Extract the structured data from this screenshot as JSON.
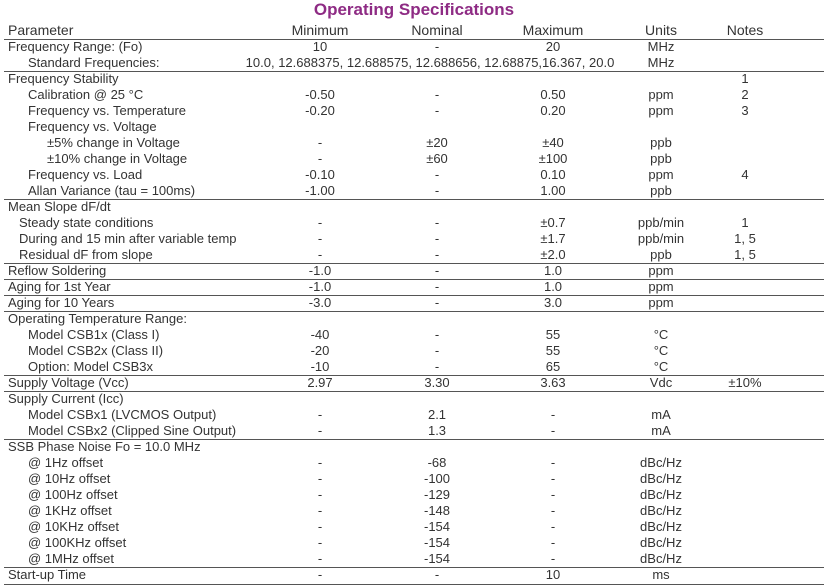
{
  "title": "Operating Specifications",
  "table": {
    "header": {
      "parameter": "Parameter",
      "minimum": "Minimum",
      "nominal": "Nominal",
      "maximum": "Maximum",
      "units": "Units",
      "notes": "Notes"
    },
    "rows": [
      {
        "parameter": "Frequency Range: (Fo)",
        "minimum": "10",
        "nominal": "-",
        "maximum": "20",
        "units": "MHz"
      },
      {
        "parameter": "Standard Frequencies:",
        "values": "10.0, 12.688375, 12.688575, 12.688656, 12.68875,16.367, 20.0",
        "units": "MHz"
      },
      {
        "parameter": "Frequency Stability",
        "notes": "1"
      },
      {
        "parameter": "Calibration @ 25 °C",
        "minimum": "-0.50",
        "nominal": "-",
        "maximum": "0.50",
        "units": "ppm",
        "notes": "2"
      },
      {
        "parameter": "Frequency vs. Temperature",
        "minimum": "-0.20",
        "nominal": "-",
        "maximum": "0.20",
        "units": "ppm",
        "notes": "3"
      },
      {
        "parameter": "Frequency vs. Voltage"
      },
      {
        "parameter": "±5% change in Voltage",
        "minimum": "-",
        "nominal": "±20",
        "maximum": "±40",
        "units": "ppb"
      },
      {
        "parameter": "±10% change in Voltage",
        "minimum": "-",
        "nominal": "±60",
        "maximum": "±100",
        "units": "ppb"
      },
      {
        "parameter": "Frequency vs. Load",
        "minimum": "-0.10",
        "nominal": "-",
        "maximum": "0.10",
        "units": "ppm",
        "notes": "4"
      },
      {
        "parameter": "Allan Variance (tau = 100ms)",
        "minimum": "-1.00",
        "nominal": "-",
        "maximum": "1.00",
        "units": "ppb"
      },
      {
        "parameter": "Mean Slope dF/dt"
      },
      {
        "parameter": "Steady state conditions",
        "minimum": "-",
        "nominal": "-",
        "maximum": "±0.7",
        "units": "ppb/min",
        "notes": "1"
      },
      {
        "parameter": "During and 15 min after variable temp",
        "minimum": "-",
        "nominal": "-",
        "maximum": "±1.7",
        "units": "ppb/min",
        "notes": "1, 5"
      },
      {
        "parameter": "Residual dF from slope",
        "minimum": "-",
        "nominal": "-",
        "maximum": "±2.0",
        "units": "ppb",
        "notes": "1, 5"
      },
      {
        "parameter": "Reflow Soldering",
        "minimum": "-1.0",
        "nominal": "-",
        "maximum": "1.0",
        "units": "ppm"
      },
      {
        "parameter": "Aging for 1st Year",
        "minimum": "-1.0",
        "nominal": "-",
        "maximum": "1.0",
        "units": "ppm"
      },
      {
        "parameter": "Aging for 10 Years",
        "minimum": "-3.0",
        "nominal": "-",
        "maximum": "3.0",
        "units": "ppm"
      },
      {
        "parameter": "Operating Temperature Range:"
      },
      {
        "parameter": "Model CSB1x (Class I)",
        "minimum": "-40",
        "nominal": "-",
        "maximum": "55",
        "units": "°C"
      },
      {
        "parameter": "Model CSB2x (Class II)",
        "minimum": "-20",
        "nominal": "-",
        "maximum": "55",
        "units": "°C"
      },
      {
        "parameter": "Option: Model CSB3x",
        "minimum": "-10",
        "nominal": "-",
        "maximum": "65",
        "units": "°C"
      },
      {
        "parameter": "Supply Voltage (Vcc)",
        "minimum": "2.97",
        "nominal": "3.30",
        "maximum": "3.63",
        "units": "Vdc",
        "notes": "±10%"
      },
      {
        "parameter": "Supply Current (Icc)"
      },
      {
        "parameter": "Model CSBx1 (LVCMOS Output)",
        "minimum": "-",
        "nominal": "2.1",
        "maximum": "-",
        "units": "mA"
      },
      {
        "parameter": "Model CSBx2 (Clipped Sine Output)",
        "minimum": "-",
        "nominal": "1.3",
        "maximum": "-",
        "units": "mA"
      },
      {
        "parameter": "SSB Phase Noise Fo = 10.0 MHz"
      },
      {
        "parameter": "@ 1Hz offset",
        "minimum": "-",
        "nominal": "-68",
        "maximum": "-",
        "units": "dBc/Hz"
      },
      {
        "parameter": "@ 10Hz offset",
        "minimum": "-",
        "nominal": "-100",
        "maximum": "-",
        "units": "dBc/Hz"
      },
      {
        "parameter": "@ 100Hz offset",
        "minimum": "-",
        "nominal": "-129",
        "maximum": "-",
        "units": "dBc/Hz"
      },
      {
        "parameter": "@ 1KHz offset",
        "minimum": "-",
        "nominal": "-148",
        "maximum": "-",
        "units": "dBc/Hz"
      },
      {
        "parameter": "@ 10KHz offset",
        "minimum": "-",
        "nominal": "-154",
        "maximum": "-",
        "units": "dBc/Hz"
      },
      {
        "parameter": "@ 100KHz offset",
        "minimum": "-",
        "nominal": "-154",
        "maximum": "-",
        "units": "dBc/Hz"
      },
      {
        "parameter": "@ 1MHz offset",
        "minimum": "-",
        "nominal": "-154",
        "maximum": "-",
        "units": "dBc/Hz"
      },
      {
        "parameter": "Start-up Time",
        "minimum": "-",
        "nominal": "-",
        "maximum": "10",
        "units": "ms"
      }
    ]
  }
}
